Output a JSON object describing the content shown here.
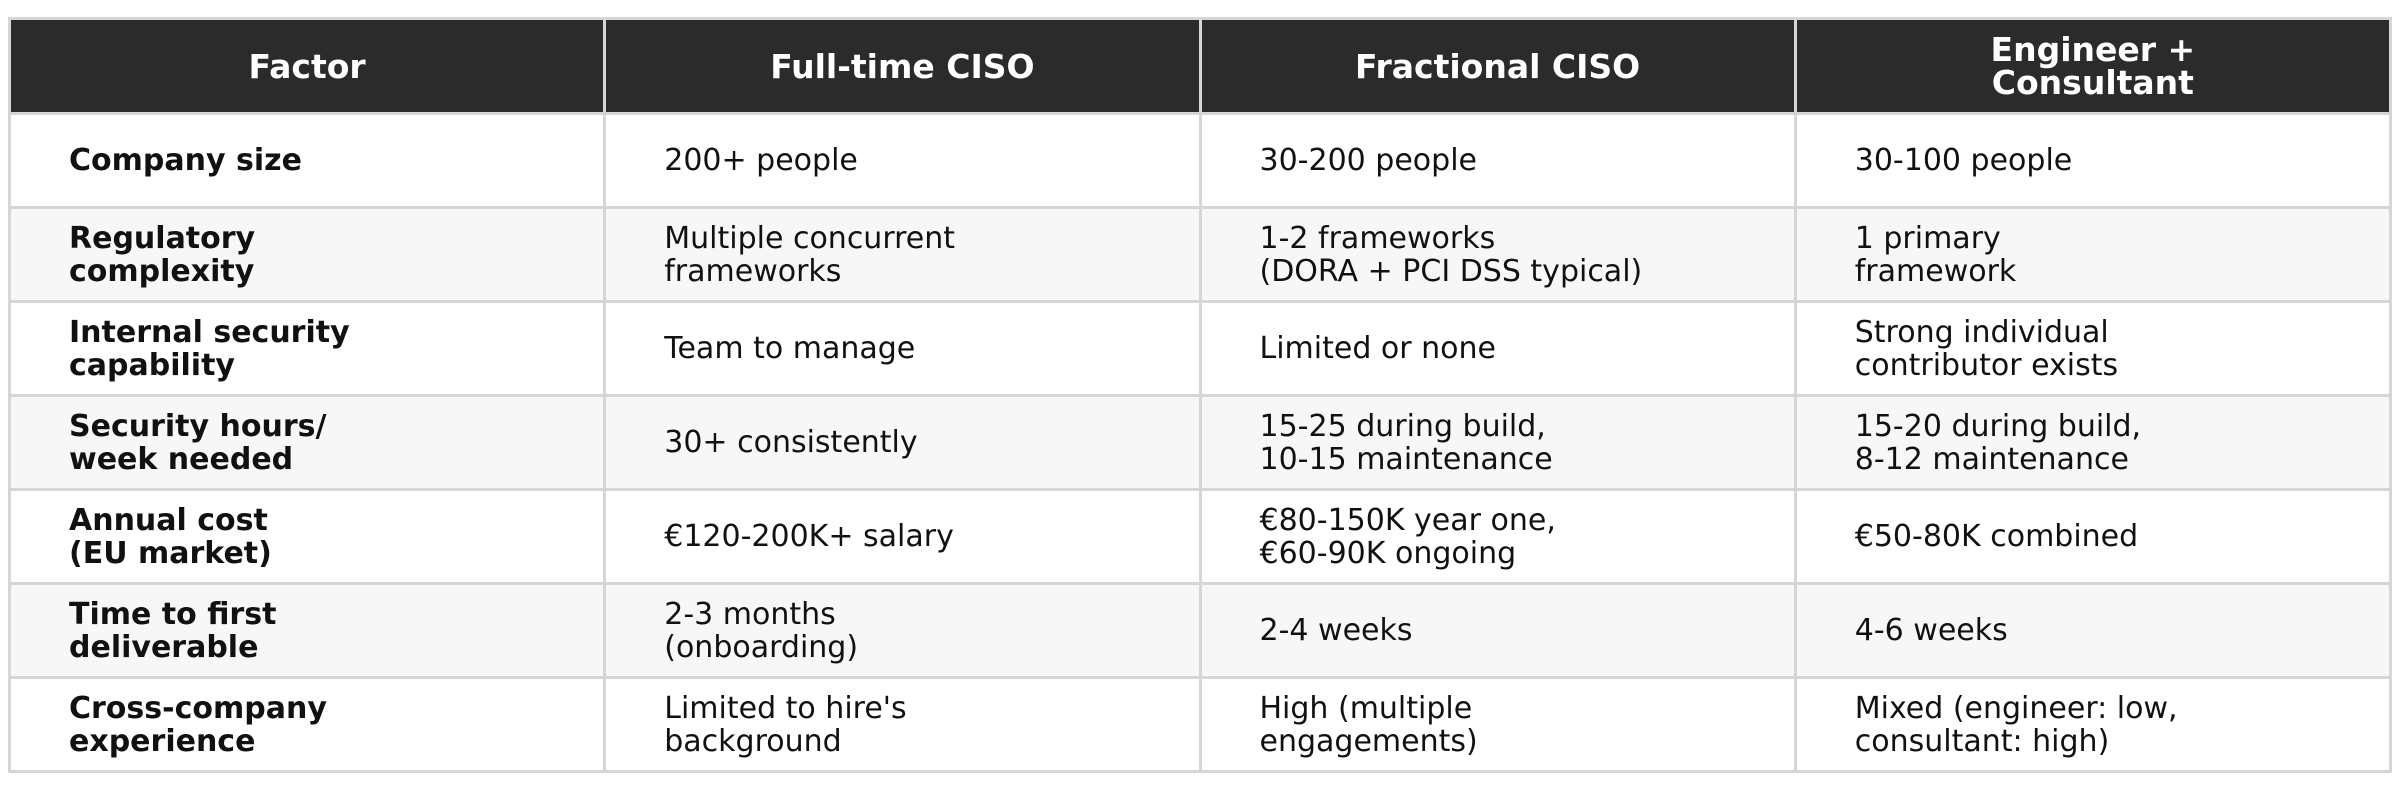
{
  "chart_data": {
    "type": "table",
    "columns": [
      "Factor",
      "Full-time CISO",
      "Fractional CISO",
      "Engineer +\nConsultant"
    ],
    "rows": [
      [
        "Company size",
        "200+ people",
        "30-200 people",
        "30-100 people"
      ],
      [
        "Regulatory\ncomplexity",
        "Multiple concurrent\nframeworks",
        "1-2 frameworks\n(DORA + PCI DSS typical)",
        "1 primary\nframework"
      ],
      [
        "Internal security\ncapability",
        "Team to manage",
        "Limited or none",
        "Strong individual\ncontributor exists"
      ],
      [
        "Security hours/\nweek needed",
        "30+ consistently",
        "15-25 during build,\n10-15 maintenance",
        "15-20 during build,\n8-12 maintenance"
      ],
      [
        "Annual cost\n(EU market)",
        "€120-200K+ salary",
        "€80-150K year one,\n€60-90K ongoing",
        "€50-80K combined"
      ],
      [
        "Time to first\ndeliverable",
        "2-3 months\n(onboarding)",
        "2-4 weeks",
        "4-6 weeks"
      ],
      [
        "Cross-company\nexperience",
        "Limited to hire's\nbackground",
        "High (multiple\nengagements)",
        "Mixed (engineer: low,\nconsultant: high)"
      ]
    ],
    "colors": {
      "header_bg": "#2b2b2b",
      "header_text": "#ffffff",
      "stripe_bg": "#f7f7f7",
      "border": "#d6d6d6"
    }
  }
}
